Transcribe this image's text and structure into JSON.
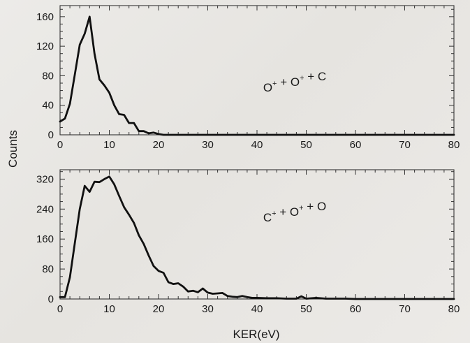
{
  "chart_data": [
    {
      "type": "line",
      "annotation": {
        "parts": [
          {
            "text": "O",
            "sup": "+"
          },
          {
            "text": " + O",
            "sup": "+"
          },
          {
            "text": " + C",
            "sup": ""
          }
        ]
      },
      "xlim": [
        0,
        80
      ],
      "ylim": [
        0,
        175
      ],
      "xticks": [
        0,
        10,
        20,
        30,
        40,
        50,
        60,
        70,
        80
      ],
      "yticks": [
        0,
        40,
        80,
        120,
        160
      ],
      "grid": false,
      "line_color": "#111111",
      "x": [
        0,
        1,
        2,
        3,
        4,
        5,
        6,
        7,
        8,
        9,
        10,
        11,
        12,
        13,
        14,
        15,
        16,
        17,
        18,
        19,
        20,
        21,
        22,
        25,
        30,
        40,
        50,
        60,
        70,
        80
      ],
      "y": [
        18,
        22,
        42,
        82,
        122,
        137,
        160,
        110,
        75,
        67,
        57,
        40,
        28,
        27,
        16,
        16,
        5,
        5,
        2,
        3,
        1,
        0,
        0,
        0,
        0,
        0,
        0,
        0,
        0,
        0
      ]
    },
    {
      "type": "line",
      "annotation": {
        "parts": [
          {
            "text": "C",
            "sup": "+"
          },
          {
            "text": " + O",
            "sup": "+"
          },
          {
            "text": " + O",
            "sup": ""
          }
        ]
      },
      "xlim": [
        0,
        80
      ],
      "ylim": [
        0,
        345
      ],
      "xticks": [
        0,
        10,
        20,
        30,
        40,
        50,
        60,
        70,
        80
      ],
      "yticks": [
        0,
        80,
        160,
        240,
        320
      ],
      "grid": false,
      "line_color": "#111111",
      "x": [
        0,
        1,
        2,
        3,
        4,
        5,
        6,
        7,
        8,
        9,
        10,
        11,
        12,
        13,
        14,
        15,
        16,
        17,
        18,
        19,
        20,
        21,
        22,
        23,
        24,
        25,
        26,
        27,
        28,
        29,
        30,
        31,
        32,
        33,
        34,
        35,
        36,
        37,
        38,
        39,
        40,
        42,
        44,
        46,
        48,
        49,
        50,
        52,
        54,
        56,
        58,
        60,
        65,
        70,
        75,
        80
      ],
      "y": [
        5,
        5,
        58,
        150,
        240,
        302,
        286,
        313,
        312,
        320,
        327,
        306,
        275,
        245,
        225,
        203,
        170,
        147,
        116,
        88,
        75,
        70,
        45,
        40,
        42,
        33,
        20,
        22,
        18,
        28,
        17,
        14,
        15,
        16,
        8,
        6,
        5,
        8,
        5,
        3,
        3,
        2,
        2,
        1,
        1,
        7,
        1,
        3,
        1,
        1,
        1,
        0,
        0,
        0,
        0,
        0
      ]
    }
  ],
  "shared": {
    "ylabel": "Counts",
    "xlabel": "KER(eV)"
  }
}
